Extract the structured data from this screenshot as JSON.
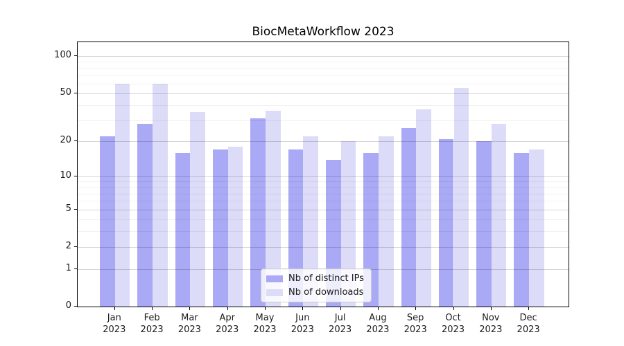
{
  "title": "BiocMetaWorkflow 2023",
  "chart_data": {
    "type": "bar",
    "categories": [
      "Jan 2023",
      "Feb 2023",
      "Mar 2023",
      "Apr 2023",
      "May 2023",
      "Jun 2023",
      "Jul 2023",
      "Aug 2023",
      "Sep 2023",
      "Oct 2023",
      "Nov 2023",
      "Dec 2023"
    ],
    "x_tick_months": [
      "Jan",
      "Feb",
      "Mar",
      "Apr",
      "May",
      "Jun",
      "Jul",
      "Aug",
      "Sep",
      "Oct",
      "Nov",
      "Dec"
    ],
    "x_tick_year": "2023",
    "series": [
      {
        "name": "Nb of distinct IPs",
        "color": "#a9a9f5",
        "values": [
          22,
          28,
          16,
          17,
          31,
          17,
          14,
          16,
          26,
          21,
          20,
          16
        ]
      },
      {
        "name": "Nb of downloads",
        "color": "#dcdcf8",
        "values": [
          60,
          60,
          35,
          18,
          36,
          22,
          20,
          22,
          37,
          55,
          28,
          17
        ]
      }
    ],
    "title": "BiocMetaWorkflow 2023",
    "xlabel": "",
    "ylabel": "",
    "yscale": "log1p",
    "ylim": [
      0,
      100
    ],
    "y_ticks": [
      100,
      50,
      20,
      10,
      5,
      2,
      1,
      0
    ],
    "y_tick_labels": [
      "100",
      "50",
      "20",
      "10",
      "5",
      "2",
      "1",
      "0"
    ],
    "y_minor_ticks": [
      3,
      4,
      6,
      7,
      8,
      9,
      30,
      40,
      60,
      70,
      80,
      90
    ],
    "grid": true,
    "grid_over_bars": true,
    "legend_position": "lower center"
  },
  "legend": {
    "items": [
      {
        "label": "Nb of distinct IPs",
        "color": "#a9a9f5"
      },
      {
        "label": "Nb of downloads",
        "color": "#dcdcf8"
      }
    ]
  }
}
